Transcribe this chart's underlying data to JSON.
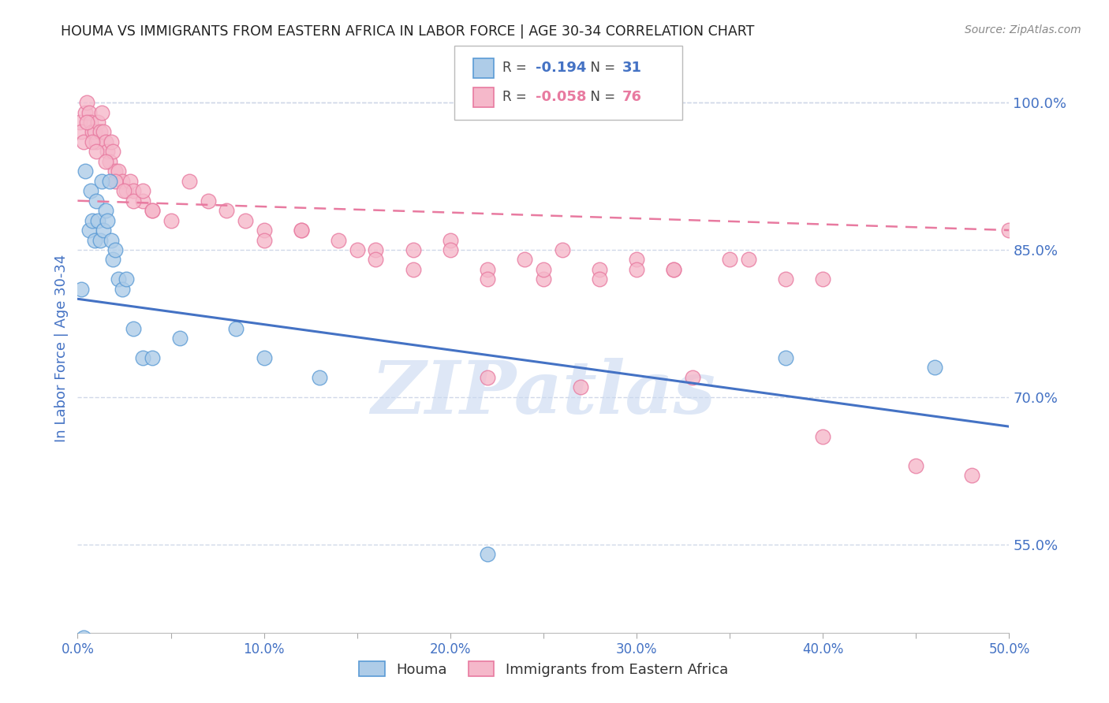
{
  "title": "HOUMA VS IMMIGRANTS FROM EASTERN AFRICA IN LABOR FORCE | AGE 30-34 CORRELATION CHART",
  "source": "Source: ZipAtlas.com",
  "ylabel": "In Labor Force | Age 30-34",
  "xlim": [
    0.0,
    0.5
  ],
  "ylim": [
    0.46,
    1.04
  ],
  "xtick_labels": [
    "0.0%",
    "",
    "10.0%",
    "",
    "20.0%",
    "",
    "30.0%",
    "",
    "40.0%",
    "",
    "50.0%"
  ],
  "xtick_vals": [
    0.0,
    0.05,
    0.1,
    0.15,
    0.2,
    0.25,
    0.3,
    0.35,
    0.4,
    0.45,
    0.5
  ],
  "ytick_right_labels": [
    "100.0%",
    "85.0%",
    "70.0%",
    "55.0%"
  ],
  "ytick_right_vals": [
    1.0,
    0.85,
    0.7,
    0.55
  ],
  "houma_R": -0.194,
  "houma_N": 31,
  "immigrants_R": -0.058,
  "immigrants_N": 76,
  "houma_color": "#aecce8",
  "houma_edge_color": "#5b9bd5",
  "immigrants_color": "#f5b8ca",
  "immigrants_edge_color": "#e87aa0",
  "trend_houma_color": "#4472c4",
  "trend_immigrants_color": "#e87aa0",
  "watermark": "ZIPatlas",
  "watermark_color": "#c8d8f0",
  "houma_x": [
    0.002,
    0.004,
    0.006,
    0.007,
    0.008,
    0.009,
    0.01,
    0.011,
    0.012,
    0.013,
    0.014,
    0.015,
    0.016,
    0.017,
    0.018,
    0.019,
    0.02,
    0.022,
    0.024,
    0.026,
    0.03,
    0.035,
    0.04,
    0.055,
    0.085,
    0.1,
    0.13,
    0.22,
    0.38,
    0.46,
    0.003
  ],
  "houma_y": [
    0.81,
    0.93,
    0.87,
    0.91,
    0.88,
    0.86,
    0.9,
    0.88,
    0.86,
    0.92,
    0.87,
    0.89,
    0.88,
    0.92,
    0.86,
    0.84,
    0.85,
    0.82,
    0.81,
    0.82,
    0.77,
    0.74,
    0.74,
    0.76,
    0.77,
    0.74,
    0.72,
    0.54,
    0.74,
    0.73,
    0.455
  ],
  "immigrants_x": [
    0.001,
    0.002,
    0.003,
    0.004,
    0.005,
    0.006,
    0.007,
    0.008,
    0.009,
    0.01,
    0.011,
    0.012,
    0.013,
    0.014,
    0.015,
    0.016,
    0.017,
    0.018,
    0.019,
    0.02,
    0.022,
    0.024,
    0.026,
    0.028,
    0.03,
    0.035,
    0.04,
    0.05,
    0.06,
    0.07,
    0.08,
    0.09,
    0.1,
    0.12,
    0.14,
    0.16,
    0.18,
    0.2,
    0.22,
    0.24,
    0.26,
    0.28,
    0.3,
    0.32,
    0.36,
    0.4,
    0.005,
    0.008,
    0.01,
    0.015,
    0.02,
    0.025,
    0.03,
    0.035,
    0.04,
    0.1,
    0.12,
    0.16,
    0.2,
    0.25,
    0.3,
    0.35,
    0.15,
    0.18,
    0.22,
    0.25,
    0.28,
    0.32,
    0.38,
    0.22,
    0.27,
    0.33,
    0.4,
    0.45,
    0.48,
    0.5
  ],
  "immigrants_y": [
    0.98,
    0.97,
    0.96,
    0.99,
    1.0,
    0.99,
    0.98,
    0.97,
    0.97,
    0.96,
    0.98,
    0.97,
    0.99,
    0.97,
    0.96,
    0.95,
    0.94,
    0.96,
    0.95,
    0.93,
    0.93,
    0.92,
    0.91,
    0.92,
    0.91,
    0.9,
    0.89,
    0.88,
    0.92,
    0.9,
    0.89,
    0.88,
    0.87,
    0.87,
    0.86,
    0.85,
    0.85,
    0.86,
    0.83,
    0.84,
    0.85,
    0.83,
    0.84,
    0.83,
    0.84,
    0.66,
    0.98,
    0.96,
    0.95,
    0.94,
    0.92,
    0.91,
    0.9,
    0.91,
    0.89,
    0.86,
    0.87,
    0.84,
    0.85,
    0.82,
    0.83,
    0.84,
    0.85,
    0.83,
    0.82,
    0.83,
    0.82,
    0.83,
    0.82,
    0.72,
    0.71,
    0.72,
    0.82,
    0.63,
    0.62,
    0.87
  ],
  "background_color": "#ffffff",
  "grid_color": "#d0d8e8",
  "title_color": "#222222",
  "axis_label_color": "#4472c4",
  "tick_color": "#4472c4"
}
